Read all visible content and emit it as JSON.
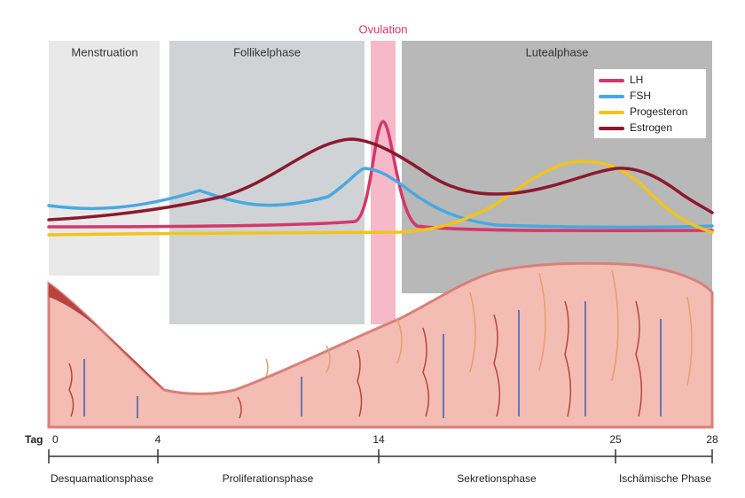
{
  "ovulation_label": "Ovulation",
  "phases": [
    "Menstruation",
    "Follikelphase",
    "Lutealphase"
  ],
  "legend": [
    {
      "name": "LH",
      "color": "#d4386a"
    },
    {
      "name": "FSH",
      "color": "#4aa8e0"
    },
    {
      "name": "Progesteron",
      "color": "#f2c41a"
    },
    {
      "name": "Estrogen",
      "color": "#8b1a2e"
    }
  ],
  "axis": {
    "label": "Tag",
    "ticks": [
      0,
      4,
      14,
      25,
      28
    ]
  },
  "stages": [
    "Desquamationsphase",
    "Proliferationsphase",
    "Sekretionsphase",
    "Ischämische Phase"
  ]
}
